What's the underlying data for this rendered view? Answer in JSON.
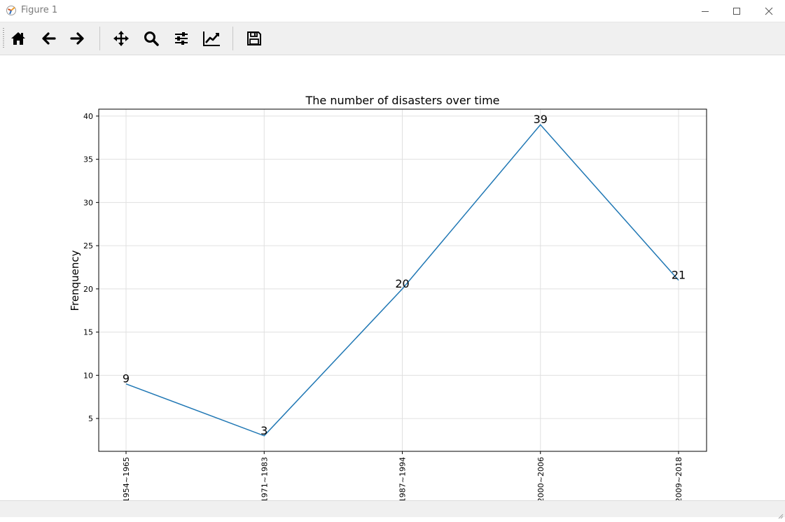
{
  "window": {
    "title": "Figure 1",
    "icons": {
      "app": "matplotlib-icon",
      "minimize": "minimize-icon",
      "maximize": "maximize-icon",
      "close": "close-icon"
    }
  },
  "toolbar": {
    "tools": [
      {
        "id": "home",
        "icon": "home-icon"
      },
      {
        "id": "back",
        "icon": "arrow-left-icon"
      },
      {
        "id": "forward",
        "icon": "arrow-right-icon"
      },
      {
        "id": "pan",
        "icon": "move-icon"
      },
      {
        "id": "zoom",
        "icon": "magnifier-icon"
      },
      {
        "id": "subplots",
        "icon": "sliders-icon"
      },
      {
        "id": "customize",
        "icon": "line-chart-icon"
      },
      {
        "id": "save",
        "icon": "floppy-disk-icon"
      }
    ]
  },
  "chart_data": {
    "type": "line",
    "title": "The number of disasters over time",
    "xlabel": "",
    "ylabel": "Frenquency",
    "categories": [
      "1954~1965",
      "1971~1983",
      "1987~1994",
      "2000~2006",
      "2009~2018"
    ],
    "values": [
      9,
      3,
      20,
      39,
      21
    ],
    "data_labels": [
      "9",
      "3",
      "20",
      "39",
      "21"
    ],
    "ylim": [
      1.2,
      40.8
    ],
    "yticks": [
      5,
      10,
      15,
      20,
      25,
      30,
      35,
      40
    ],
    "grid": true,
    "line_color": "#1f77b4",
    "x_tick_rotation": 90
  }
}
